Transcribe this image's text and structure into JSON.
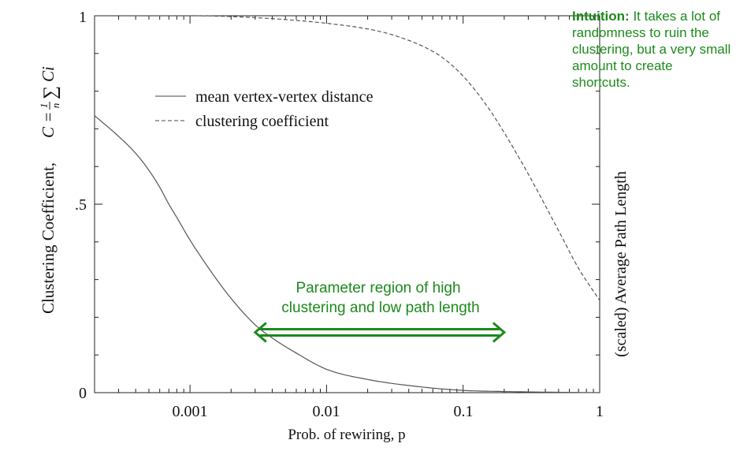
{
  "chart_data": {
    "type": "line",
    "x_scale": "log",
    "xlim": [
      0.0002,
      1
    ],
    "ylim": [
      0,
      1
    ],
    "xlabel": "Prob. of rewiring, p",
    "ylabel_left": "Clustering Coefficient,",
    "ylabel_formula": {
      "prefix": "C =",
      "frac_num": "1",
      "frac_den": "n",
      "sum": "∑",
      "suffix": "Ci"
    },
    "ylabel_right": "(scaled) Average Path Length",
    "x_ticks": [
      {
        "value": 0.001,
        "label": "0.001"
      },
      {
        "value": 0.01,
        "label": "0.01"
      },
      {
        "value": 0.1,
        "label": "0.1"
      },
      {
        "value": 1,
        "label": "1"
      }
    ],
    "y_ticks": [
      {
        "value": 0,
        "label": "0"
      },
      {
        "value": 0.5,
        "label": ".5"
      },
      {
        "value": 1,
        "label": "1"
      }
    ],
    "legend": [
      {
        "label": "mean vertex-vertex distance",
        "style": "solid"
      },
      {
        "label": "clustering coefficient",
        "style": "dashed"
      }
    ],
    "series": [
      {
        "name": "mean vertex-vertex distance",
        "style": "solid",
        "x": [
          0.0002,
          0.0003,
          0.0004,
          0.0005,
          0.0006,
          0.0007,
          0.0008,
          0.001,
          0.0015,
          0.002,
          0.003,
          0.004,
          0.006,
          0.01,
          0.02,
          0.05,
          0.1,
          0.2,
          0.5,
          1
        ],
        "y": [
          0.735,
          0.68,
          0.635,
          0.59,
          0.545,
          0.5,
          0.465,
          0.405,
          0.31,
          0.25,
          0.18,
          0.145,
          0.105,
          0.062,
          0.035,
          0.015,
          0.006,
          0.003,
          0.001,
          0.0
        ]
      },
      {
        "name": "clustering coefficient",
        "style": "dashed",
        "x": [
          0.0002,
          0.001,
          0.002,
          0.005,
          0.01,
          0.02,
          0.03,
          0.05,
          0.07,
          0.1,
          0.15,
          0.2,
          0.3,
          0.5,
          0.7,
          1
        ],
        "y": [
          1.0,
          1.0,
          0.998,
          0.99,
          0.98,
          0.965,
          0.95,
          0.92,
          0.89,
          0.84,
          0.76,
          0.69,
          0.58,
          0.43,
          0.33,
          0.245
        ]
      }
    ],
    "annotation": {
      "line1": "Parameter region of high",
      "line2": "clustering and low path length",
      "arrow_from": 0.003,
      "arrow_to": 0.2,
      "arrow_y": 0.16,
      "color": "#1c8a1c"
    }
  },
  "intuition": {
    "bold": "Intuition:",
    "text": "It takes a lot of randomness to ruin the clustering, but a very small amount to create shortcuts."
  }
}
